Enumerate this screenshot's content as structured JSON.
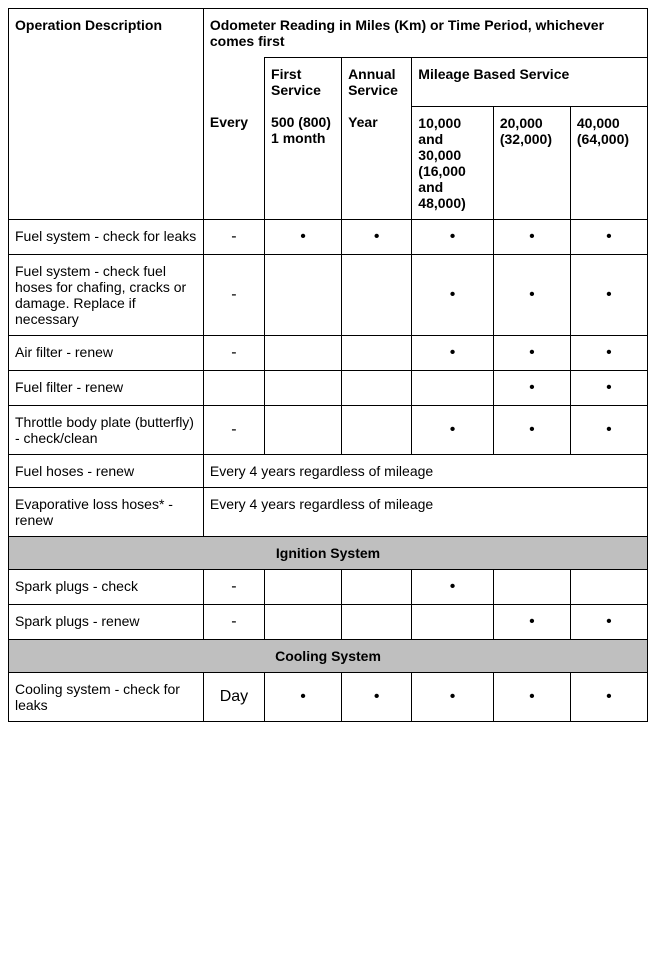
{
  "header": {
    "operation_description": "Operation Description",
    "odometer_reading": "Odometer Reading in Miles (Km) or Time Period, whichever comes first",
    "first_service": "First Service",
    "annual_service": "Annual Service",
    "mileage_based_service": "Mileage Based Service",
    "every": "Every",
    "col_500": "500 (800) 1 month",
    "col_year": "Year",
    "col_10000": "10,000 and 30,000 (16,000 and 48,000)",
    "col_20000": "20,000 (32,000)",
    "col_40000": "40,000 (64,000)"
  },
  "rows": [
    {
      "label": "Fuel system - check for leaks",
      "every": "-",
      "c1": "•",
      "c2": "•",
      "c3": "•",
      "c4": "•",
      "c5": "•"
    },
    {
      "label": "Fuel system - check fuel hoses for chafing, cracks or damage. Replace if necessary",
      "every": "-",
      "c1": "",
      "c2": "",
      "c3": "•",
      "c4": "•",
      "c5": "•"
    },
    {
      "label": "Air filter - renew",
      "every": "-",
      "c1": "",
      "c2": "",
      "c3": "•",
      "c4": "•",
      "c5": "•"
    },
    {
      "label": "Fuel filter - renew",
      "every": "",
      "c1": "",
      "c2": "",
      "c3": "",
      "c4": "•",
      "c5": "•"
    },
    {
      "label": "Throttle body plate (butterfly) - check/clean",
      "every": "-",
      "c1": "",
      "c2": "",
      "c3": "•",
      "c4": "•",
      "c5": "•"
    },
    {
      "label": "Fuel hoses - renew",
      "span": "Every 4 years regardless of mileage"
    },
    {
      "label": "Evaporative loss hoses* - renew",
      "span": "Every 4 years regardless of mileage"
    }
  ],
  "sections": {
    "ignition": "Ignition System",
    "cooling": "Cooling System"
  },
  "ignition_rows": [
    {
      "label": "Spark plugs - check",
      "every": "-",
      "c1": "",
      "c2": "",
      "c3": "•",
      "c4": "",
      "c5": ""
    },
    {
      "label": "Spark plugs - renew",
      "every": "-",
      "c1": "",
      "c2": "",
      "c3": "",
      "c4": "•",
      "c5": "•"
    }
  ],
  "cooling_rows": [
    {
      "label": "Cooling system - check for leaks",
      "every": "Day",
      "c1": "•",
      "c2": "•",
      "c3": "•",
      "c4": "•",
      "c5": "•"
    }
  ]
}
